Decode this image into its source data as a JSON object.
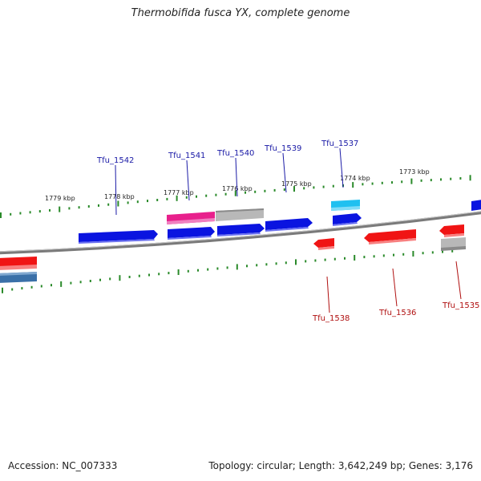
{
  "title": "Thermobifida fusca YX, complete genome",
  "footer": {
    "accession": "Accession: NC_007333",
    "summary": "Topology: circular; Length: 3,642,249 bp; Genes: 3,176"
  },
  "scale_labels": [
    "1779 kbp",
    "1778 kbp",
    "1777 kbp",
    "1776 kbp",
    "1775 kbp",
    "1774 kbp",
    "1773 kbp"
  ],
  "gene_labels": {
    "forward": [
      "Tfu_1542",
      "Tfu_1541",
      "Tfu_1540",
      "Tfu_1539",
      "Tfu_1537"
    ],
    "reverse": [
      "Tfu_1538",
      "Tfu_1536",
      "Tfu_1535"
    ]
  },
  "colors": {
    "forward_label": "#1a1aa6",
    "reverse_label": "#b01010",
    "backbone": "#7a7a7a",
    "tick": "#2a8a2a",
    "blue": "#0a14e0",
    "red": "#f01414",
    "magenta": "#e8208c",
    "gray": "#b8b8b8",
    "cyan": "#20c0f0",
    "steel": "#3a70a8"
  }
}
